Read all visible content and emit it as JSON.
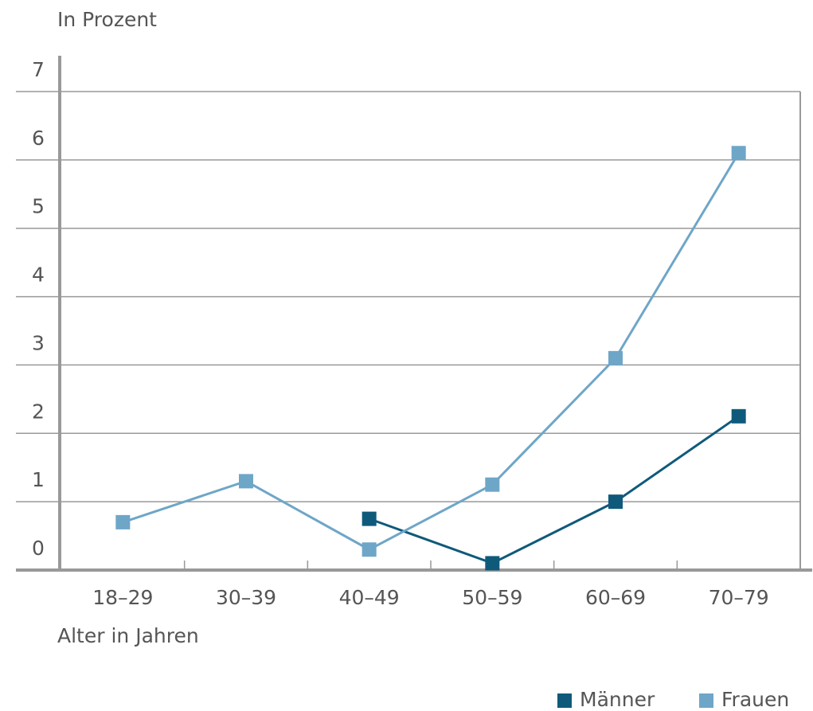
{
  "chart_data": {
    "type": "line",
    "y_label": "In Prozent",
    "x_label": "Alter in Jahren",
    "categories": [
      "18–29",
      "30–39",
      "40–49",
      "50–59",
      "60–69",
      "70–79"
    ],
    "series": [
      {
        "name": "Männer",
        "color": "#0f5a7a",
        "values": [
          null,
          null,
          0.75,
          0.1,
          1.0,
          2.25
        ]
      },
      {
        "name": "Frauen",
        "color": "#6ea6c8",
        "values": [
          0.7,
          1.3,
          0.3,
          1.25,
          3.1,
          6.1
        ]
      }
    ],
    "ylim": [
      0,
      7
    ],
    "yticks": [
      0,
      1,
      2,
      3,
      4,
      5,
      6,
      7
    ],
    "grid": true,
    "legend": "bottom-right"
  }
}
